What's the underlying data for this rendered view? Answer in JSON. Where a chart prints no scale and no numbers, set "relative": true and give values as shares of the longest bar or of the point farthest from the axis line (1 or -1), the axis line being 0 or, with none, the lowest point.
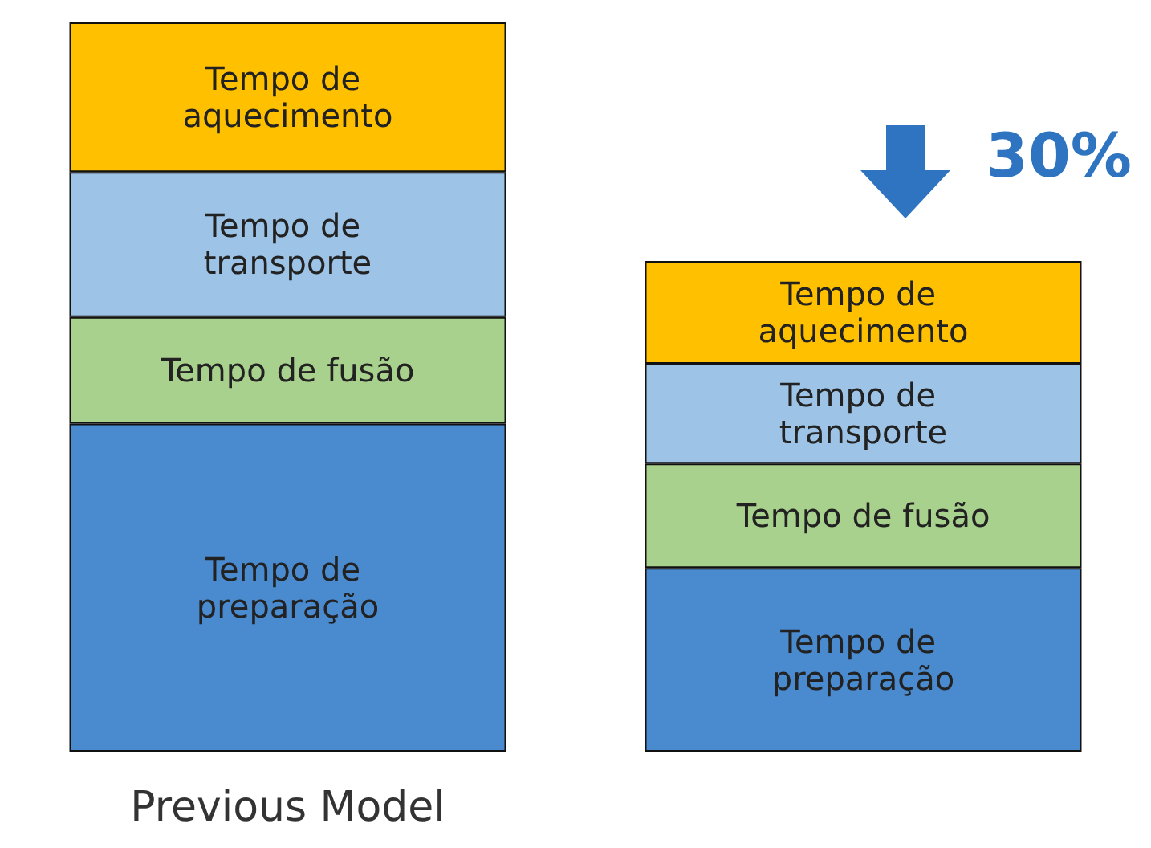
{
  "chart_data": {
    "type": "bar",
    "stacked": true,
    "relative": true,
    "categories": [
      "Previous Model",
      null
    ],
    "series": [
      {
        "name": "Tempo de preparação",
        "color": "#4a8bd0",
        "values": [
          0.45,
          0.252
        ]
      },
      {
        "name": "Tempo de fusão",
        "color": "#a9d18e",
        "values": [
          0.146,
          0.143
        ]
      },
      {
        "name": "Tempo de transporte",
        "color": "#9dc3e6",
        "values": [
          0.199,
          0.137
        ]
      },
      {
        "name": "Tempo de aquecimento",
        "color": "#ffc000",
        "values": [
          0.205,
          0.141
        ]
      }
    ],
    "annotations": [
      "30%"
    ]
  }
}
